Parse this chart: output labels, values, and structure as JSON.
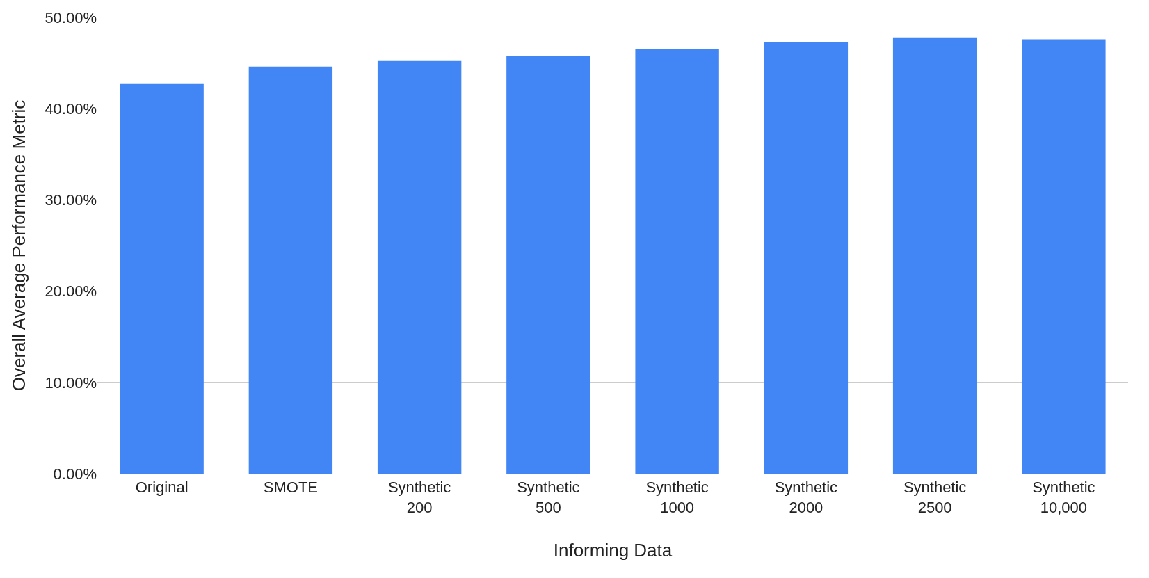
{
  "chart_data": {
    "type": "bar",
    "xlabel": "Informing Data",
    "ylabel": "Overall Average Performance Metric",
    "categories": [
      "Original",
      "SMOTE",
      "Synthetic\n200",
      "Synthetic\n500",
      "Synthetic\n1000",
      "Synthetic\n2000",
      "Synthetic\n2500",
      "Synthetic\n10,000"
    ],
    "values": [
      42.7,
      44.6,
      45.3,
      45.8,
      46.5,
      47.3,
      47.8,
      47.6
    ],
    "color": "#4285f4",
    "ylim": [
      0,
      50
    ],
    "yticks": [
      {
        "value": 0,
        "label": "0.00%"
      },
      {
        "value": 10,
        "label": "10.00%"
      },
      {
        "value": 20,
        "label": "20.00%"
      },
      {
        "value": 30,
        "label": "30.00%"
      },
      {
        "value": 40,
        "label": "40.00%"
      },
      {
        "value": 50,
        "label": "50.00%"
      }
    ],
    "grid": "y"
  }
}
